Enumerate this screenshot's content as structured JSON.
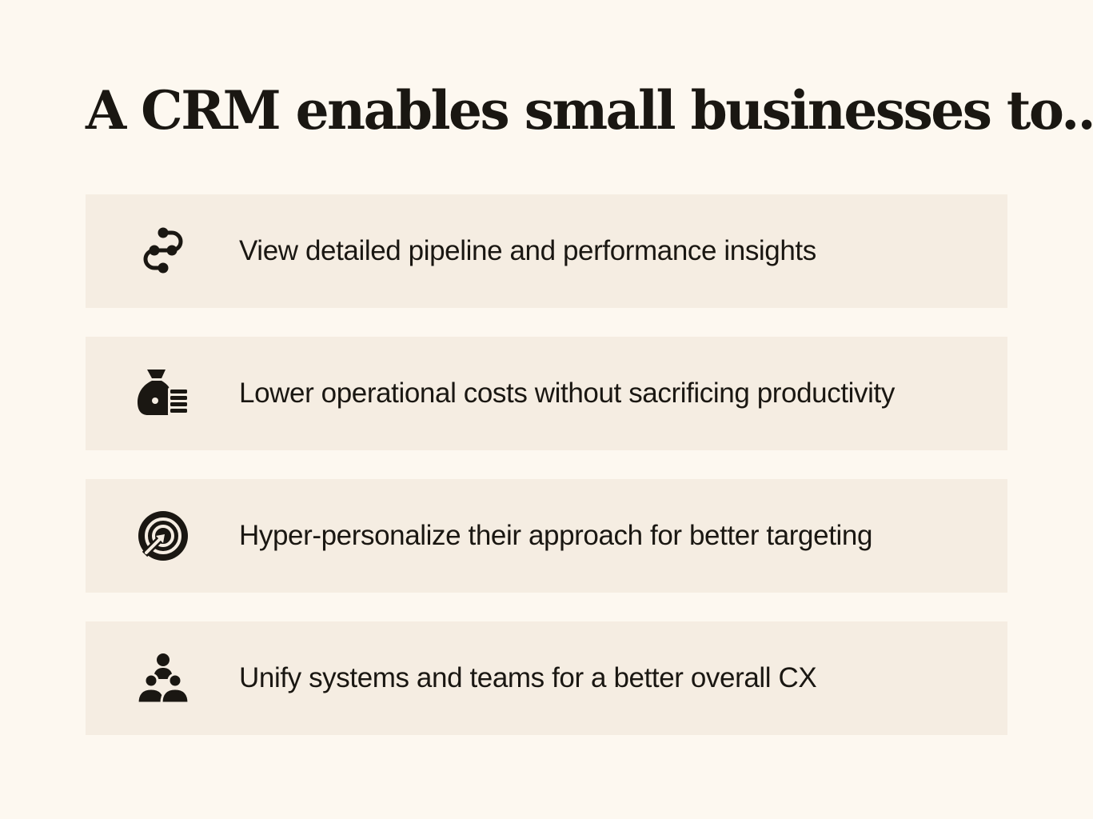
{
  "title": "A CRM enables small businesses to...",
  "colors": {
    "background": "#fdf8f0",
    "card": "#f5ede2",
    "ink": "#1a1712"
  },
  "items": [
    {
      "icon": "pipeline-icon",
      "label": "View detailed pipeline and performance insights"
    },
    {
      "icon": "money-bag-icon",
      "label": "Lower operational costs without sacrificing productivity"
    },
    {
      "icon": "target-icon",
      "label": "Hyper-personalize their approach for better targeting"
    },
    {
      "icon": "team-icon",
      "label": "Unify systems and teams for a better overall CX"
    }
  ]
}
